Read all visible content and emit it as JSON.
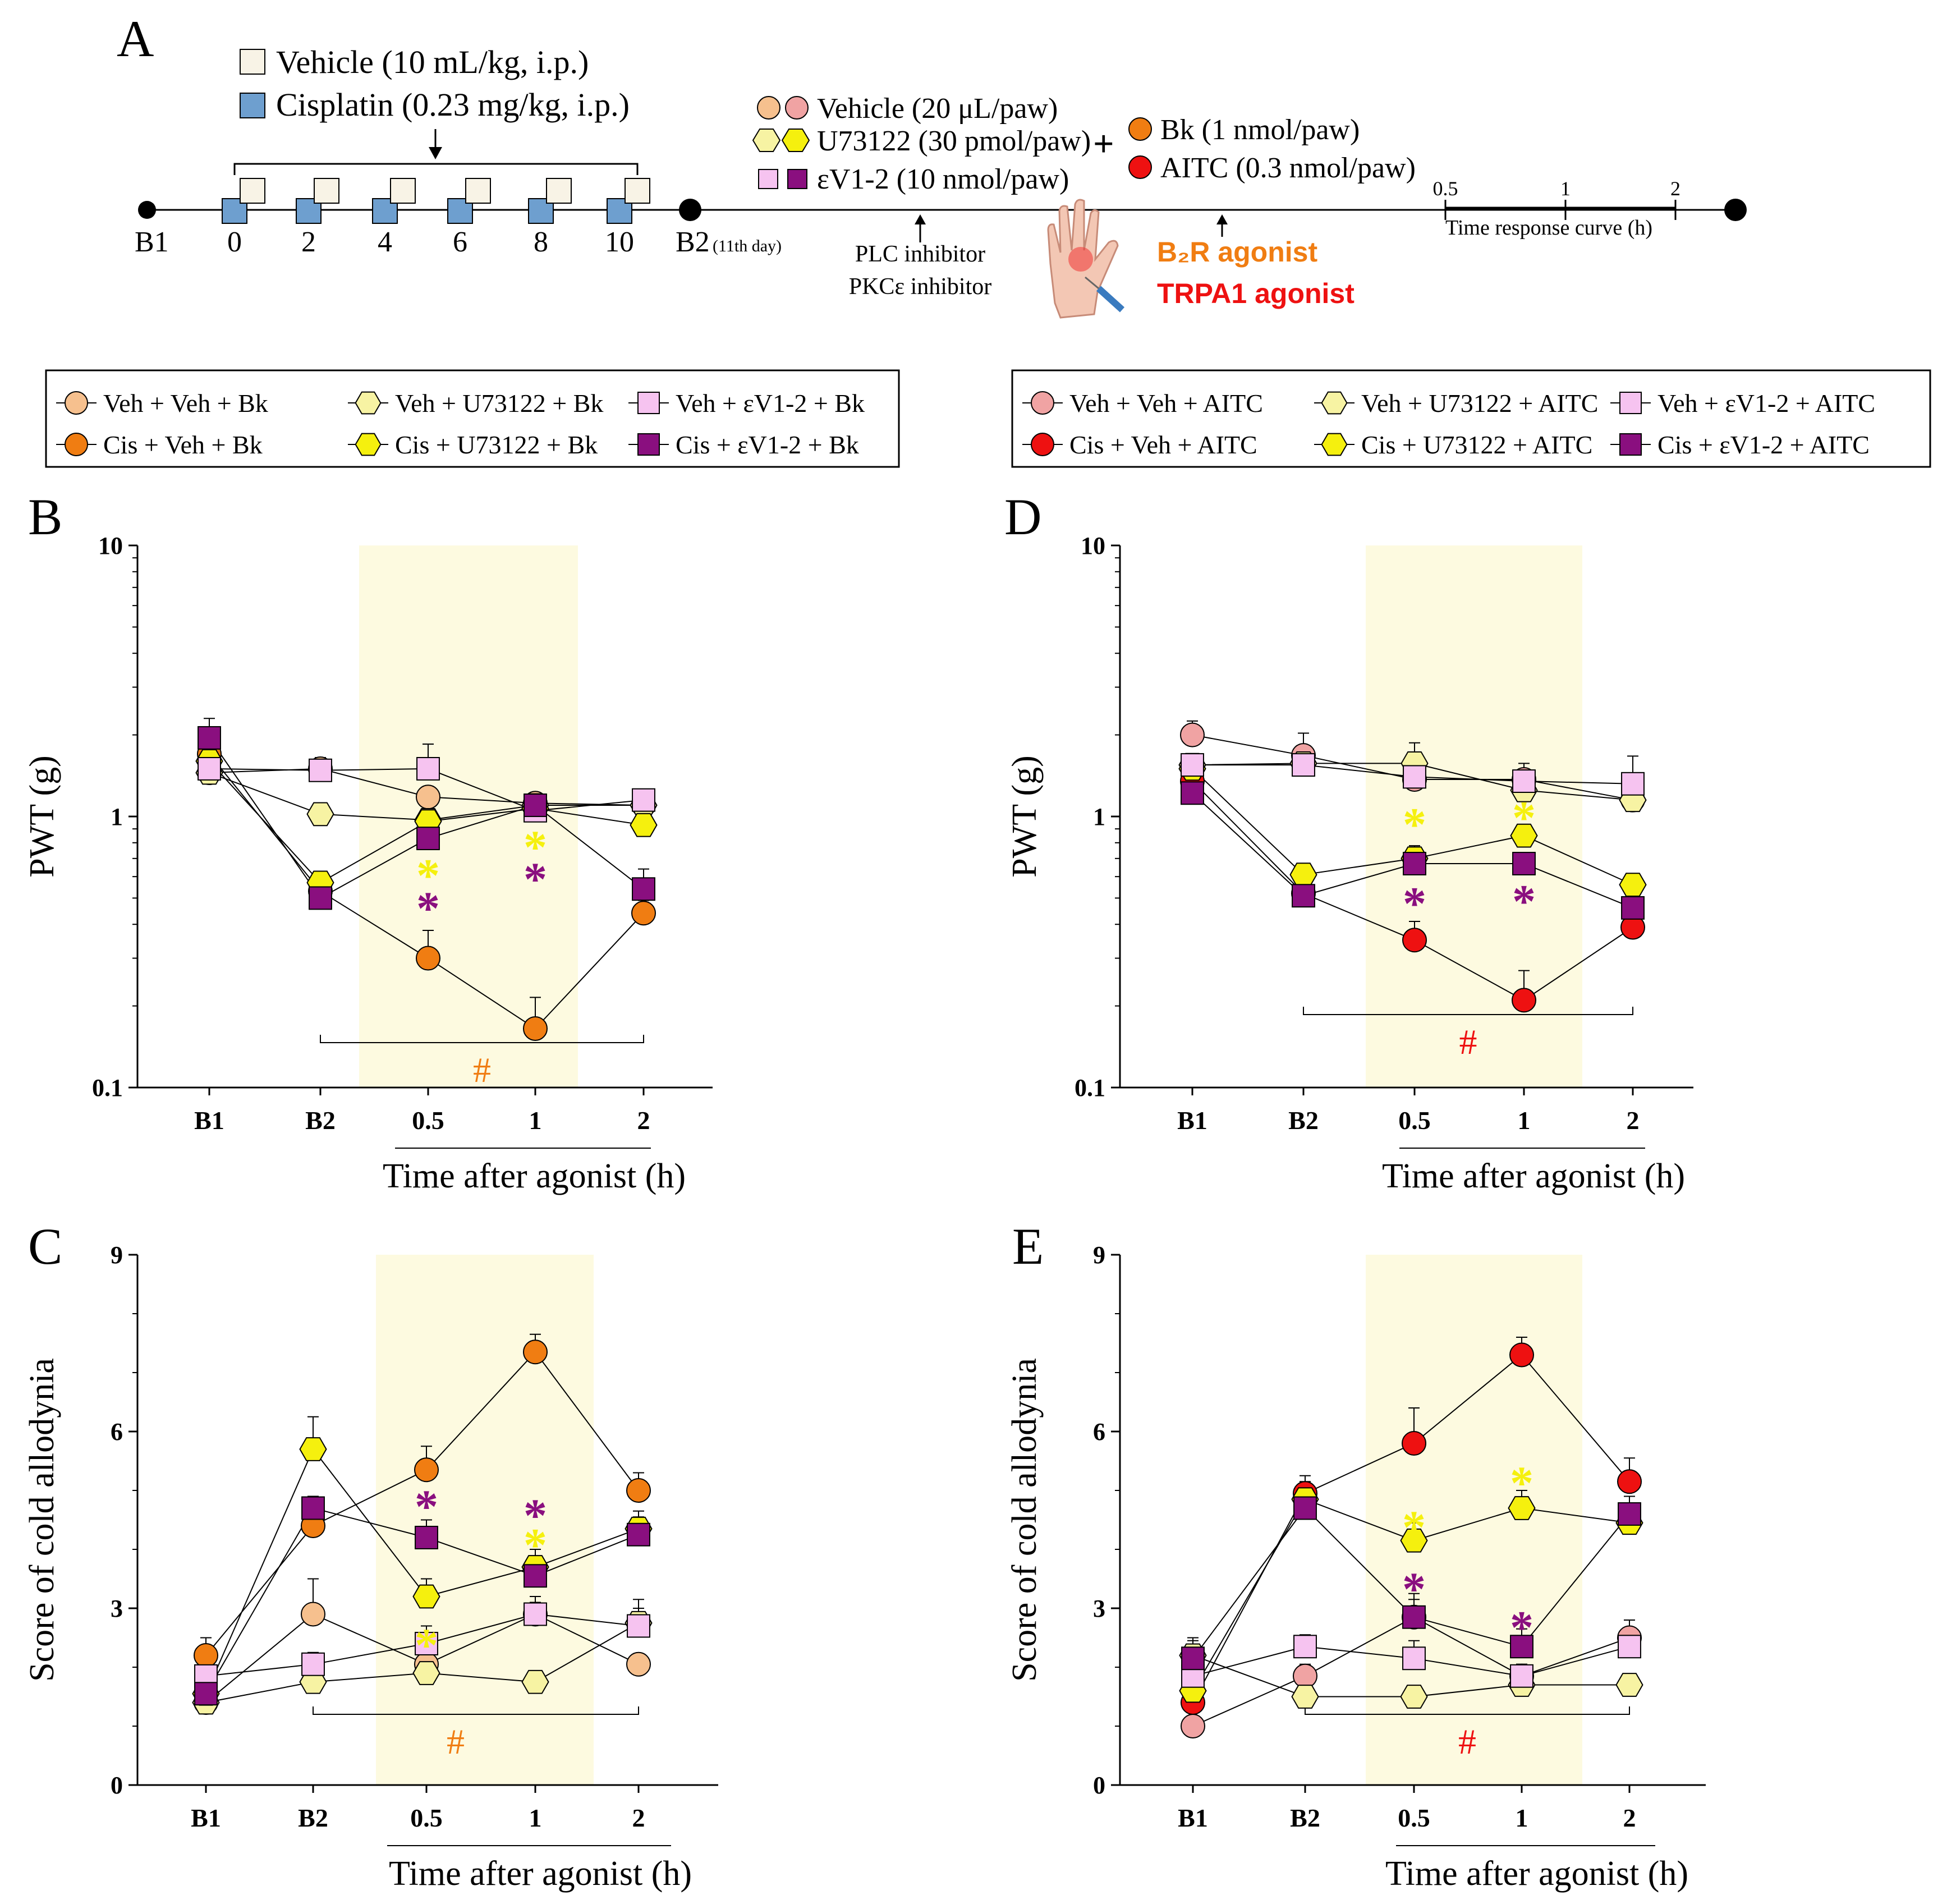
{
  "colors": {
    "veh_bk": "#f6c08e",
    "cis_bk": "#f07d12",
    "veh_aitc": "#f0a3a3",
    "cis_aitc": "#ee1111",
    "veh_u73122": "#f7f3a3",
    "cis_u73122": "#f5f00e",
    "veh_ev12": "#f6c3f0",
    "cis_ev12": "#8a0f7f",
    "vehicle_box": "#f8f3e6",
    "cisplatin_box": "#6e9fcf",
    "highlight": "#fdfae0",
    "bk_text": "#f07d12",
    "aitc_text": "#ee1111"
  },
  "panel_a": {
    "label": "A",
    "vehicle_ip": "Vehicle (10 mL/kg, i.p.)",
    "cisplatin_ip": "Cisplatin (0.23 mg/kg, i.p.)",
    "b1": "B1",
    "b2": "B2",
    "b2_sup": "(11th day)",
    "days": [
      "0",
      "2",
      "4",
      "6",
      "8",
      "10"
    ],
    "vehicle_paw": "Vehicle (20 μL/paw)",
    "u73122_paw": "U73122 (30 pmol/paw)",
    "ev12_paw": "εV1-2 (10 nmol/paw)",
    "plus": "+",
    "bk_paw": "Bk (1 nmol/paw)",
    "aitc_paw": "AITC (0.3 nmol/paw)",
    "plc": "PLC inhibitor",
    "pkc": "PKCε inhibitor",
    "b2r_agonist": "B₂R agonist",
    "trpa1_agonist": "TRPA1 agonist",
    "trc_ticks": [
      "0.5",
      "1",
      "2"
    ],
    "trc_label": "Time response curve (h)"
  },
  "legend_left": [
    "Veh + Veh + Bk",
    "Cis + Veh + Bk",
    "Veh + U73122 + Bk",
    "Cis + U73122 + Bk",
    "Veh + εV1-2 + Bk",
    "Cis + εV1-2 + Bk"
  ],
  "legend_right": [
    "Veh + Veh + AITC",
    "Cis + Veh + AITC",
    "Veh + U73122 + AITC",
    "Cis + U73122 + AITC",
    "Veh + εV1-2 + AITC",
    "Cis + εV1-2 + AITC"
  ],
  "chart_data": [
    {
      "panel": "B",
      "type": "line",
      "yscale": "log",
      "categories": [
        "B1",
        "B2",
        "0.5",
        "1",
        "2"
      ],
      "xlabel": "Time after agonist (h)",
      "ylabel": "PWT (g)",
      "ylim": [
        0.1,
        10
      ],
      "yticks": [
        "0.1",
        "1",
        "10"
      ],
      "highlight": "0.5–1 h",
      "series": [
        {
          "name": "Veh + Veh + Bk",
          "values": [
            1.45,
            1.5,
            1.18,
            1.12,
            1.1
          ],
          "err": [
            0.1,
            0.15,
            0.1,
            0.08,
            0.1
          ]
        },
        {
          "name": "Cis + Veh + Bk",
          "values": [
            1.7,
            0.53,
            0.3,
            0.165,
            0.44
          ],
          "err": [
            0.2,
            0.05,
            0.08,
            0.05,
            0.05
          ]
        },
        {
          "name": "Veh + U73122 + Bk",
          "values": [
            1.45,
            1.02,
            0.97,
            1.1,
            1.1
          ],
          "err": [
            0.08,
            0.06,
            0.06,
            0.06,
            0.06
          ]
        },
        {
          "name": "Cis + U73122 + Bk",
          "values": [
            1.6,
            0.57,
            0.96,
            1.07,
            0.93
          ],
          "err": [
            0.1,
            0.05,
            0.06,
            0.06,
            0.05
          ]
        },
        {
          "name": "Veh + εV1-2 + Bk",
          "values": [
            1.5,
            1.48,
            1.5,
            1.05,
            1.15
          ],
          "err": [
            0.1,
            0.1,
            0.35,
            0.06,
            0.08
          ]
        },
        {
          "name": "Cis + εV1-2 + Bk",
          "values": [
            1.95,
            0.5,
            0.83,
            1.1,
            0.54
          ],
          "err": [
            0.35,
            0.05,
            0.08,
            0.08,
            0.1
          ]
        }
      ],
      "annotations": {
        "hash": "#",
        "asterisk": "*"
      }
    },
    {
      "panel": "D",
      "type": "line",
      "yscale": "log",
      "categories": [
        "B1",
        "B2",
        "0.5",
        "1",
        "2"
      ],
      "xlabel": "Time after agonist (h)",
      "ylabel": "PWT (g)",
      "ylim": [
        0.1,
        10
      ],
      "yticks": [
        "0.1",
        "1",
        "10"
      ],
      "highlight": "0.5–1 h",
      "series": [
        {
          "name": "Veh + Veh + AITC",
          "values": [
            2.0,
            1.68,
            1.37,
            1.37,
            1.15
          ],
          "err": [
            0.25,
            0.35,
            0.08,
            0.2,
            0.08
          ]
        },
        {
          "name": "Cis + Veh + AITC",
          "values": [
            1.35,
            0.52,
            0.35,
            0.21,
            0.39
          ],
          "err": [
            0.15,
            0.06,
            0.06,
            0.06,
            0.04
          ]
        },
        {
          "name": "Veh + U73122 + AITC",
          "values": [
            1.55,
            1.57,
            1.57,
            1.25,
            1.15
          ],
          "err": [
            0.1,
            0.08,
            0.3,
            0.15,
            0.08
          ]
        },
        {
          "name": "Cis + U73122 + AITC",
          "values": [
            1.5,
            0.61,
            0.7,
            0.85,
            0.56
          ],
          "err": [
            0.1,
            0.05,
            0.08,
            0.08,
            0.05
          ]
        },
        {
          "name": "Veh + εV1-2 + AITC",
          "values": [
            1.55,
            1.55,
            1.4,
            1.35,
            1.32
          ],
          "err": [
            0.1,
            0.1,
            0.1,
            0.15,
            0.35
          ]
        },
        {
          "name": "Cis + εV1-2 + AITC",
          "values": [
            1.22,
            0.51,
            0.67,
            0.67,
            0.46
          ],
          "err": [
            0.1,
            0.04,
            0.06,
            0.06,
            0.05
          ]
        }
      ],
      "annotations": {
        "hash": "#",
        "asterisk": "*"
      }
    },
    {
      "panel": "C",
      "type": "line",
      "yscale": "linear",
      "categories": [
        "B1",
        "B2",
        "0.5",
        "1",
        "2"
      ],
      "xlabel": "Time after agonist (h)",
      "ylabel": "Score of cold allodynia",
      "ylim": [
        0,
        9
      ],
      "yticks": [
        "0",
        "3",
        "6",
        "9"
      ],
      "highlight": "0.5–1 h",
      "series": [
        {
          "name": "Veh + Veh + Bk",
          "values": [
            1.4,
            2.9,
            2.05,
            2.9,
            2.05
          ],
          "err": [
            0.1,
            0.6,
            0.3,
            0.3,
            0.1
          ]
        },
        {
          "name": "Cis + Veh + Bk",
          "values": [
            2.2,
            4.4,
            5.35,
            7.35,
            5.0
          ],
          "err": [
            0.3,
            0.4,
            0.4,
            0.3,
            0.3
          ]
        },
        {
          "name": "Veh + U73122 + Bk",
          "values": [
            1.4,
            1.75,
            1.9,
            1.75,
            2.75
          ],
          "err": [
            0.1,
            0.15,
            0.15,
            0.15,
            0.4
          ]
        },
        {
          "name": "Cis + U73122 + Bk",
          "values": [
            1.55,
            5.7,
            3.2,
            3.7,
            4.35
          ],
          "err": [
            0.15,
            0.55,
            0.3,
            0.3,
            0.3
          ]
        },
        {
          "name": "Veh + εV1-2 + Bk",
          "values": [
            1.85,
            2.05,
            2.4,
            2.9,
            2.7
          ],
          "err": [
            0.15,
            0.2,
            0.3,
            0.2,
            0.3
          ]
        },
        {
          "name": "Cis + εV1-2 + Bk",
          "values": [
            1.55,
            4.7,
            4.2,
            3.55,
            4.25
          ],
          "err": [
            0.2,
            0.2,
            0.3,
            0.3,
            0.3
          ]
        }
      ],
      "annotations": {
        "hash": "#",
        "asterisk": "*"
      }
    },
    {
      "panel": "E",
      "type": "line",
      "yscale": "linear",
      "categories": [
        "B1",
        "B2",
        "0.5",
        "1",
        "2"
      ],
      "xlabel": "Time after agonist (h)",
      "ylabel": "Score of cold allodynia",
      "ylim": [
        0,
        9
      ],
      "yticks": [
        "0",
        "3",
        "6",
        "9"
      ],
      "highlight": "0.5–1 h",
      "series": [
        {
          "name": "Veh + Veh + AITC",
          "values": [
            1.0,
            1.85,
            2.85,
            1.85,
            2.5
          ],
          "err": [
            0.15,
            0.2,
            0.4,
            0.2,
            0.3
          ]
        },
        {
          "name": "Cis + Veh + AITC",
          "values": [
            1.4,
            4.95,
            5.8,
            7.3,
            5.15
          ],
          "err": [
            0.2,
            0.3,
            0.6,
            0.3,
            0.4
          ]
        },
        {
          "name": "Veh + U73122 + AITC",
          "values": [
            2.2,
            1.5,
            1.5,
            1.7,
            1.7
          ],
          "err": [
            0.3,
            0.15,
            0.15,
            0.15,
            0.15
          ]
        },
        {
          "name": "Cis + U73122 + AITC",
          "values": [
            1.6,
            4.85,
            4.15,
            4.7,
            4.45
          ],
          "err": [
            0.2,
            0.3,
            0.3,
            0.3,
            0.3
          ]
        },
        {
          "name": "Veh + εV1-2 + AITC",
          "values": [
            1.85,
            2.35,
            2.15,
            1.85,
            2.35
          ],
          "err": [
            0.2,
            0.2,
            0.3,
            0.2,
            0.3
          ]
        },
        {
          "name": "Cis + εV1-2 + AITC",
          "values": [
            2.15,
            4.7,
            2.85,
            2.35,
            4.6
          ],
          "err": [
            0.3,
            0.3,
            0.3,
            0.3,
            0.3
          ]
        }
      ],
      "annotations": {
        "hash": "#",
        "asterisk": "*"
      }
    }
  ]
}
